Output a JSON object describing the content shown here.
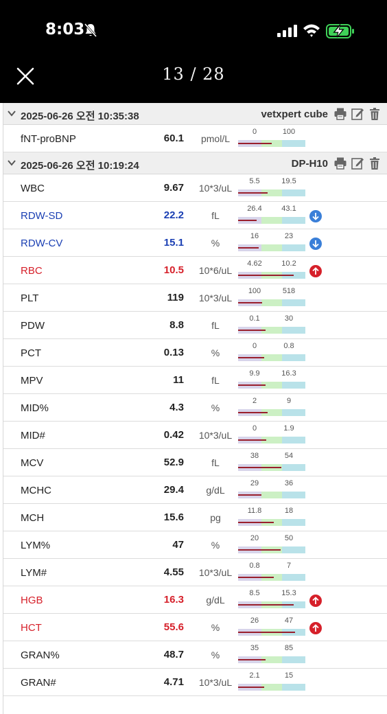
{
  "status_bar": {
    "time": "8:03"
  },
  "header": {
    "pager": "13 / 28"
  },
  "colors": {
    "low": "#1a3fb3",
    "high": "#d6202a",
    "marker": "#9a1f2d"
  },
  "groups": [
    {
      "date": "2025-06-26 오전 10:35:38",
      "device": "vetxpert cube",
      "rows": [
        {
          "name": "fNT-proBNP",
          "value": "60.1",
          "unit": "pmol/L",
          "ref_low": "0",
          "ref_high": "100",
          "flag": "",
          "level": 0.5
        }
      ]
    },
    {
      "date": "2025-06-26 오전 10:19:24",
      "device": "DP-H10",
      "rows": [
        {
          "name": "WBC",
          "value": "9.67",
          "unit": "10*3/uL",
          "ref_low": "5.5",
          "ref_high": "19.5",
          "flag": "",
          "level": 0.44
        },
        {
          "name": "RDW-SD",
          "value": "22.2",
          "unit": "fL",
          "ref_low": "26.4",
          "ref_high": "43.1",
          "flag": "low",
          "level": 0.28
        },
        {
          "name": "RDW-CV",
          "value": "15.1",
          "unit": "%",
          "ref_low": "16",
          "ref_high": "23",
          "flag": "low",
          "level": 0.31
        },
        {
          "name": "RBC",
          "value": "10.5",
          "unit": "10*6/uL",
          "ref_low": "4.62",
          "ref_high": "10.2",
          "flag": "high",
          "level": 0.83
        },
        {
          "name": "PLT",
          "value": "119",
          "unit": "10*3/uL",
          "ref_low": "100",
          "ref_high": "518",
          "flag": "",
          "level": 0.36
        },
        {
          "name": "PDW",
          "value": "8.8",
          "unit": "fL",
          "ref_low": "0.1",
          "ref_high": "30",
          "flag": "",
          "level": 0.41
        },
        {
          "name": "PCT",
          "value": "0.13",
          "unit": "%",
          "ref_low": "0",
          "ref_high": "0.8",
          "flag": "",
          "level": 0.39
        },
        {
          "name": "MPV",
          "value": "11",
          "unit": "fL",
          "ref_low": "9.9",
          "ref_high": "16.3",
          "flag": "",
          "level": 0.41
        },
        {
          "name": "MID%",
          "value": "4.3",
          "unit": "%",
          "ref_low": "2",
          "ref_high": "9",
          "flag": "",
          "level": 0.44
        },
        {
          "name": "MID#",
          "value": "0.42",
          "unit": "10*3/uL",
          "ref_low": "0",
          "ref_high": "1.9",
          "flag": "",
          "level": 0.42
        },
        {
          "name": "MCV",
          "value": "52.9",
          "unit": "fL",
          "ref_low": "38",
          "ref_high": "54",
          "flag": "",
          "level": 0.64
        },
        {
          "name": "MCHC",
          "value": "29.4",
          "unit": "g/dL",
          "ref_low": "29",
          "ref_high": "36",
          "flag": "",
          "level": 0.35
        },
        {
          "name": "MCH",
          "value": "15.6",
          "unit": "pg",
          "ref_low": "11.8",
          "ref_high": "18",
          "flag": "",
          "level": 0.53
        },
        {
          "name": "LYM%",
          "value": "47",
          "unit": "%",
          "ref_low": "20",
          "ref_high": "50",
          "flag": "",
          "level": 0.63
        },
        {
          "name": "LYM#",
          "value": "4.55",
          "unit": "10*3/uL",
          "ref_low": "0.8",
          "ref_high": "7",
          "flag": "",
          "level": 0.53
        },
        {
          "name": "HGB",
          "value": "16.3",
          "unit": "g/dL",
          "ref_low": "8.5",
          "ref_high": "15.3",
          "flag": "high",
          "level": 0.83
        },
        {
          "name": "HCT",
          "value": "55.6",
          "unit": "%",
          "ref_low": "26",
          "ref_high": "47",
          "flag": "high",
          "level": 0.85
        },
        {
          "name": "GRAN%",
          "value": "48.7",
          "unit": "%",
          "ref_low": "35",
          "ref_high": "85",
          "flag": "",
          "level": 0.41
        },
        {
          "name": "GRAN#",
          "value": "4.71",
          "unit": "10*3/uL",
          "ref_low": "2.1",
          "ref_high": "15",
          "flag": "",
          "level": 0.39
        }
      ]
    }
  ]
}
